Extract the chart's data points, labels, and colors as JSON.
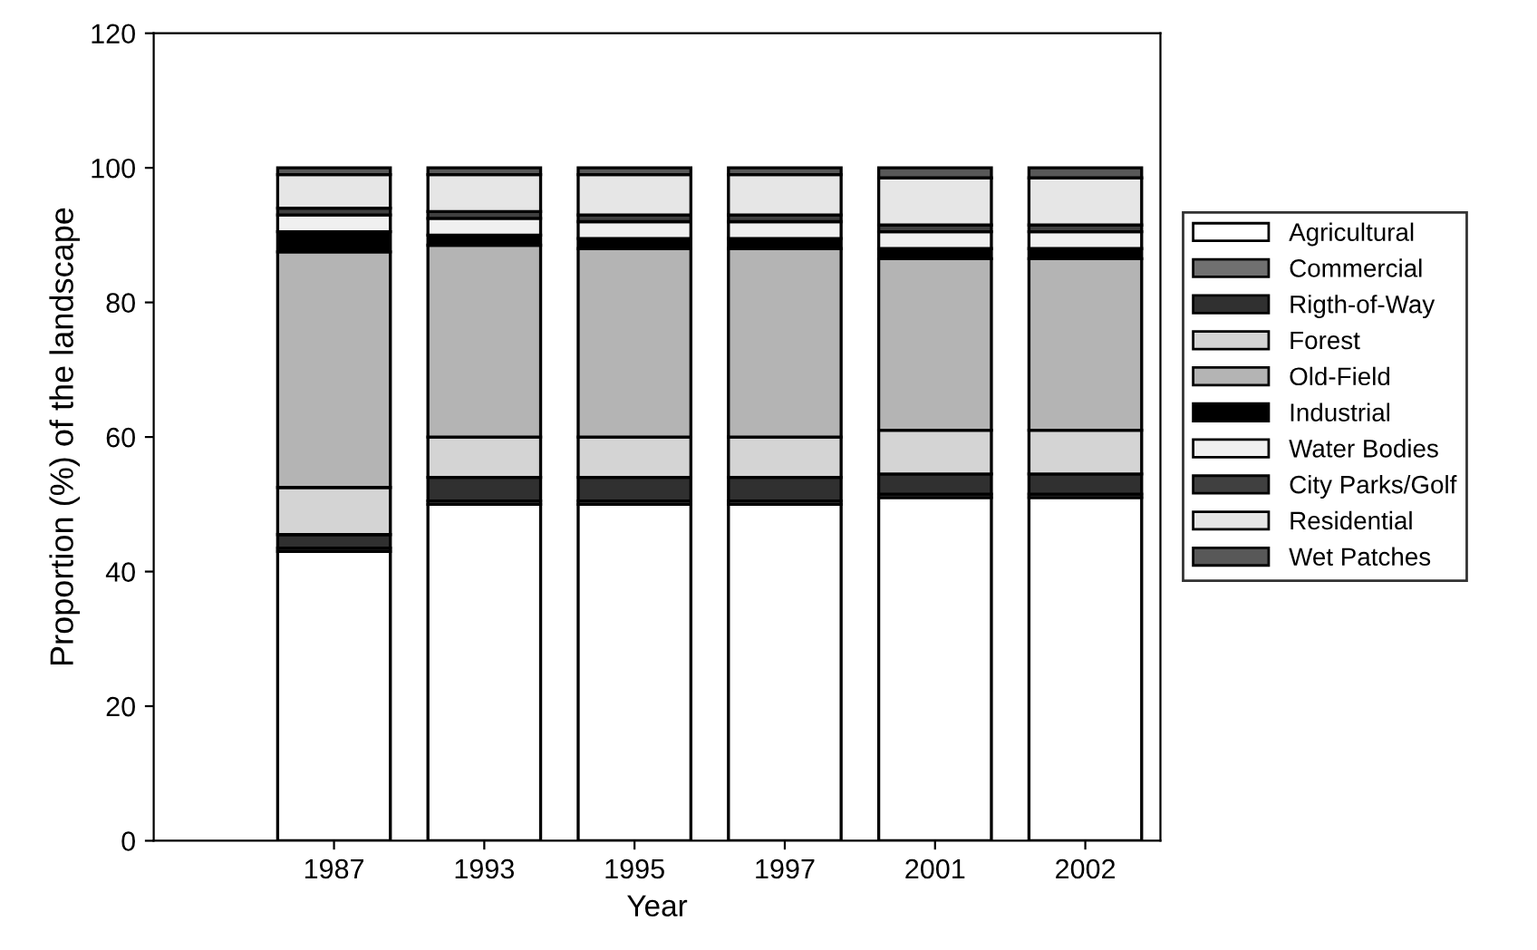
{
  "chart_data": {
    "type": "bar",
    "stacked": true,
    "xlabel": "Year",
    "ylabel": "Proportion (%) of the landscape",
    "categories": [
      "1987",
      "1993",
      "1995",
      "1997",
      "2001",
      "2002"
    ],
    "ylim": [
      0,
      120
    ],
    "yticks": [
      0,
      20,
      40,
      60,
      80,
      100,
      120
    ],
    "grid": false,
    "legend": "right",
    "series": [
      {
        "name": "Agricultural",
        "color": "#ffffff",
        "values": [
          43,
          50,
          50,
          50,
          51,
          51
        ]
      },
      {
        "name": "Commercial",
        "color": "#707070",
        "values": [
          0.5,
          0.5,
          0.5,
          0.5,
          0.5,
          0.5
        ]
      },
      {
        "name": "Rigth-of-Way",
        "color": "#303030",
        "values": [
          2,
          3.5,
          3.5,
          3.5,
          3,
          3
        ]
      },
      {
        "name": "Forest",
        "color": "#d4d4d4",
        "values": [
          7,
          6,
          6,
          6,
          6.5,
          6.5
        ]
      },
      {
        "name": "Old-Field",
        "color": "#b4b4b4",
        "values": [
          35,
          28.5,
          28,
          28,
          25.5,
          25.5
        ]
      },
      {
        "name": "Industrial",
        "color": "#000000",
        "values": [
          3,
          1.5,
          1.5,
          1.5,
          1.5,
          1.5
        ]
      },
      {
        "name": "Water Bodies",
        "color": "#f0f0f0",
        "values": [
          2.5,
          2.5,
          2.5,
          2.5,
          2.5,
          2.5
        ]
      },
      {
        "name": "City Parks/Golf",
        "color": "#404040",
        "values": [
          1,
          1,
          1,
          1,
          1,
          1
        ]
      },
      {
        "name": "Residential",
        "color": "#e6e6e6",
        "values": [
          5,
          5.5,
          6,
          6,
          7,
          7
        ]
      },
      {
        "name": "Wet Patches",
        "color": "#585858",
        "values": [
          1,
          1,
          1,
          1,
          1.5,
          1.5
        ]
      }
    ]
  }
}
